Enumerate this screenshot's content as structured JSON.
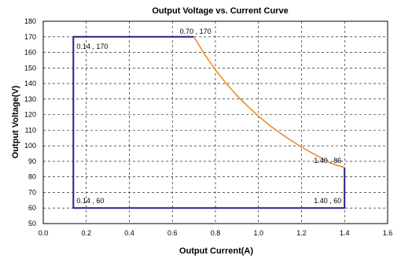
{
  "chart_data": {
    "type": "line",
    "title": "Output Voltage vs. Current Curve",
    "xlabel": "Output Current(A)",
    "ylabel": "Output Voltage(V)",
    "xlim": [
      0,
      1.6
    ],
    "ylim": [
      50,
      180
    ],
    "x_ticks": [
      "0.0",
      "0.2",
      "0.4",
      "0.6",
      "0.8",
      "1.0",
      "1.2",
      "1.4",
      "1.6"
    ],
    "y_ticks": [
      "50",
      "60",
      "70",
      "80",
      "90",
      "100",
      "110",
      "120",
      "130",
      "140",
      "150",
      "160",
      "170",
      "180"
    ],
    "grid": true,
    "series": [
      {
        "color": "#22228a",
        "x": [
          0.7,
          0.14,
          0.14,
          1.4,
          1.4
        ],
        "y": [
          170,
          170,
          60,
          60,
          86
        ]
      },
      {
        "color": "#f28a2a",
        "x": [
          0.7,
          0.75,
          0.8,
          0.85,
          0.9,
          0.95,
          1.0,
          1.05,
          1.1,
          1.15,
          1.2,
          1.25,
          1.3,
          1.35,
          1.4
        ],
        "y": [
          170,
          158.7,
          148.8,
          140.0,
          132.2,
          125.3,
          119.0,
          113.3,
          108.2,
          103.5,
          99.2,
          95.2,
          91.5,
          88.1,
          86
        ]
      }
    ],
    "annotations": [
      {
        "text": "0.70 , 170",
        "x": 0.7,
        "y": 170
      },
      {
        "text": "0.14 , 170",
        "x": 0.14,
        "y": 170
      },
      {
        "text": "0.14 , 60",
        "x": 0.14,
        "y": 60
      },
      {
        "text": "1.40 , 86",
        "x": 1.4,
        "y": 86
      },
      {
        "text": "1.40 , 60",
        "x": 1.4,
        "y": 60
      }
    ]
  }
}
